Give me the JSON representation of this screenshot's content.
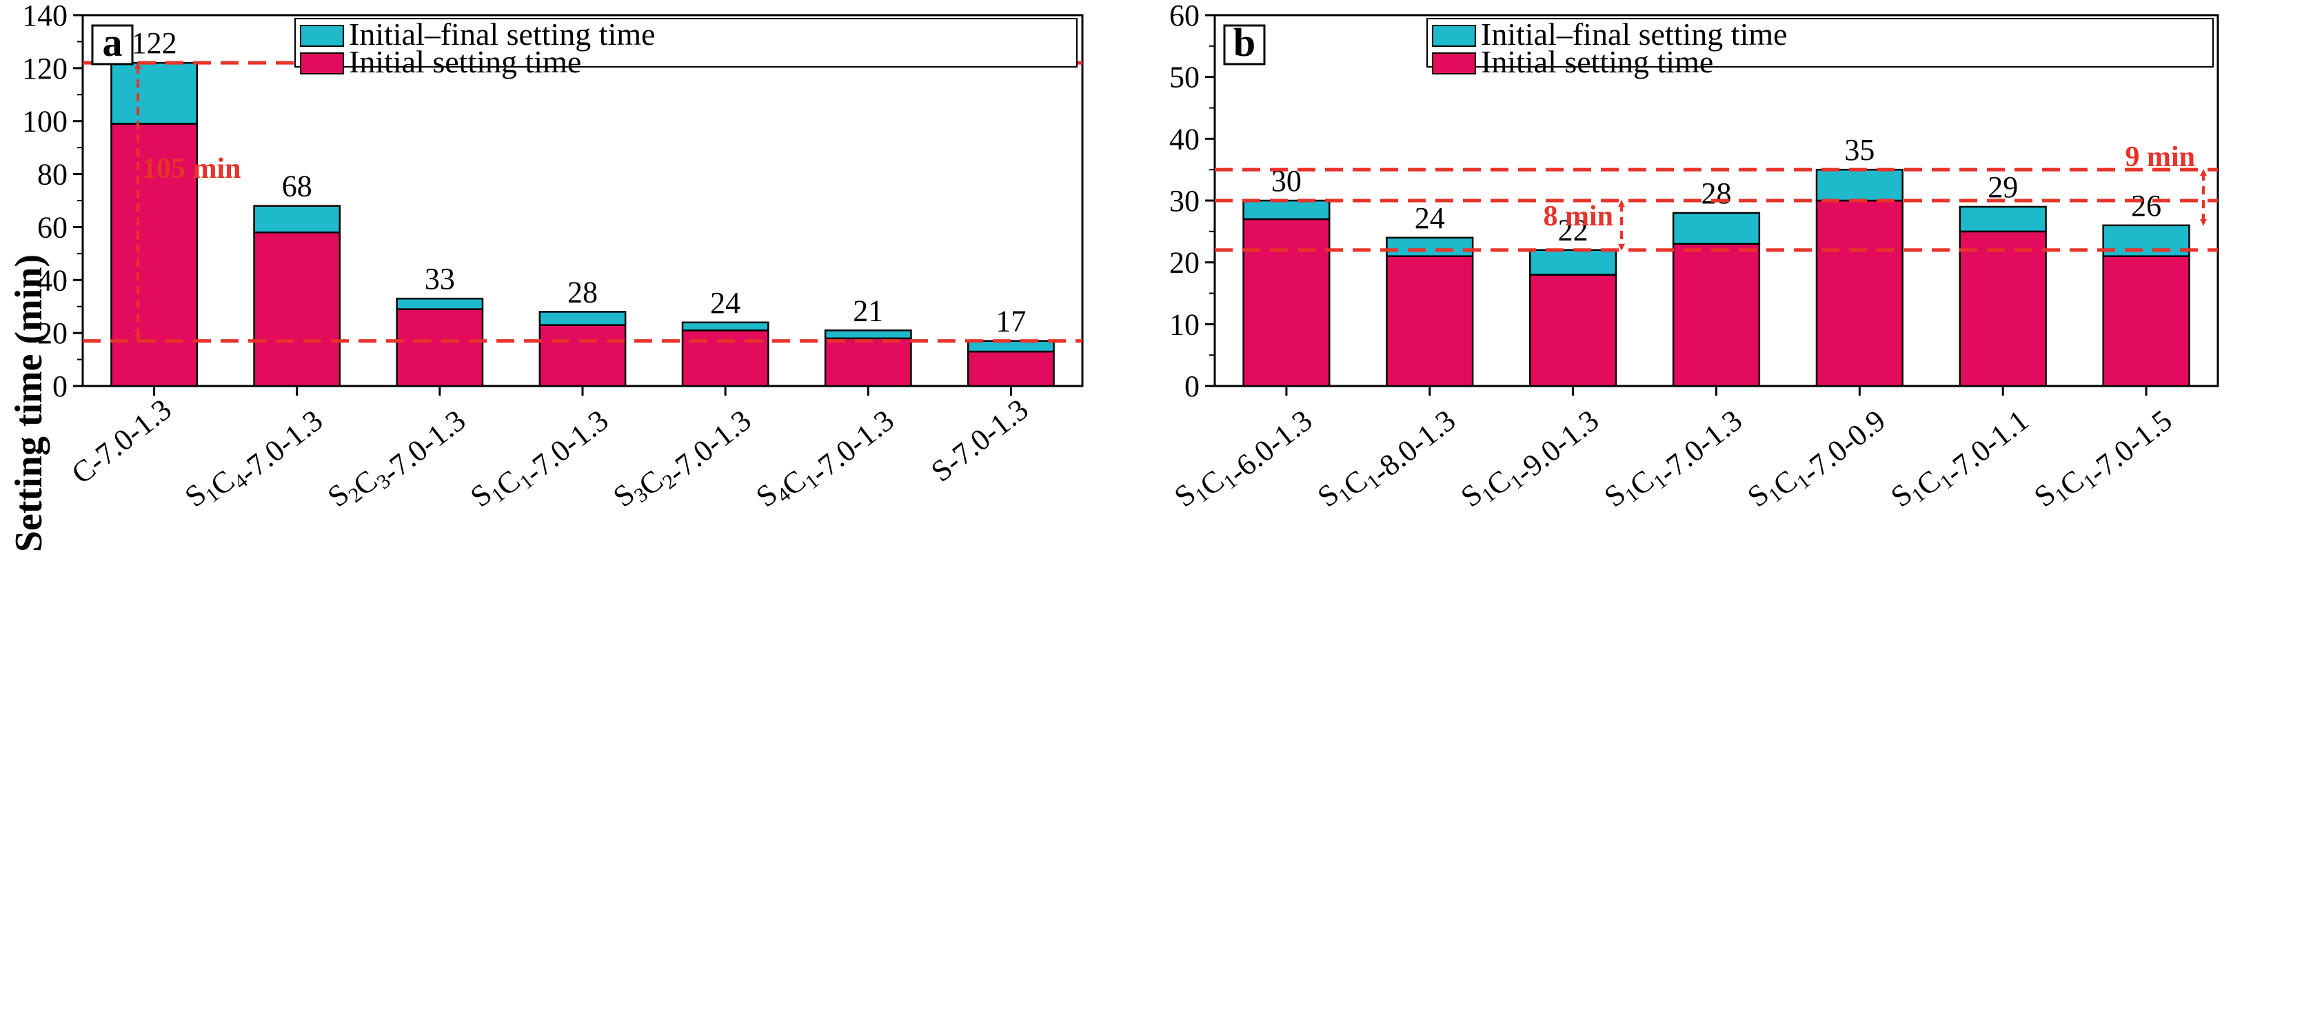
{
  "colors": {
    "initial": "#E30B5C",
    "final_segment": "#1FB9CC",
    "reference_line": "#E8332A",
    "annotation_text": "#E8332A",
    "axis": "#000000"
  },
  "chart_data": [
    {
      "panel": "a",
      "type": "bar",
      "stacked": true,
      "ylabel": "Setting time (min)",
      "xlabel": "",
      "ylim": [
        0,
        140
      ],
      "yticks": [
        "0",
        "20",
        "40",
        "60",
        "80",
        "100",
        "120",
        "140"
      ],
      "categories": [
        {
          "label": "C-7.0-1.3",
          "parts": [
            {
              "t": "C-7.0-1.3"
            }
          ]
        },
        {
          "label": "S1C4-7.0-1.3",
          "parts": [
            {
              "t": "S"
            },
            {
              "t": "1",
              "sub": true
            },
            {
              "t": "C"
            },
            {
              "t": "4",
              "sub": true
            },
            {
              "t": "-7.0-1.3"
            }
          ]
        },
        {
          "label": "S2C3-7.0-1.3",
          "parts": [
            {
              "t": "S"
            },
            {
              "t": "2",
              "sub": true
            },
            {
              "t": "C"
            },
            {
              "t": "3",
              "sub": true
            },
            {
              "t": "-7.0-1.3"
            }
          ]
        },
        {
          "label": "S1C1-7.0-1.3",
          "parts": [
            {
              "t": "S"
            },
            {
              "t": "1",
              "sub": true
            },
            {
              "t": "C"
            },
            {
              "t": "1",
              "sub": true
            },
            {
              "t": "-7.0-1.3"
            }
          ]
        },
        {
          "label": "S3C2-7.0-1.3",
          "parts": [
            {
              "t": "S"
            },
            {
              "t": "3",
              "sub": true
            },
            {
              "t": "C"
            },
            {
              "t": "2",
              "sub": true
            },
            {
              "t": "-7.0-1.3"
            }
          ]
        },
        {
          "label": "S4C1-7.0-1.3",
          "parts": [
            {
              "t": "S"
            },
            {
              "t": "4",
              "sub": true
            },
            {
              "t": "C"
            },
            {
              "t": "1",
              "sub": true
            },
            {
              "t": "-7.0-1.3"
            }
          ]
        },
        {
          "label": "S-7.0-1.3",
          "parts": [
            {
              "t": "S-7.0-1.3"
            }
          ]
        }
      ],
      "series": [
        {
          "name": "Initial setting time",
          "values": [
            99,
            58,
            29,
            23,
            21,
            18,
            13
          ]
        },
        {
          "name": "Initial–final setting time",
          "values": [
            23,
            10,
            4,
            5,
            3,
            3,
            4
          ]
        }
      ],
      "totals": [
        122,
        68,
        33,
        28,
        24,
        21,
        17
      ],
      "total_labels": [
        "122",
        "68",
        "33",
        "28",
        "24",
        "21",
        "17"
      ],
      "reference_lines": [
        122,
        17
      ],
      "annotations": [
        {
          "text": "105 min",
          "from": 122,
          "to": 17
        }
      ],
      "legend": [
        "Initial–final setting time",
        "Initial setting time"
      ],
      "legend_position": "top-right"
    },
    {
      "panel": "b",
      "type": "bar",
      "stacked": true,
      "ylabel": "",
      "xlabel": "",
      "ylim": [
        0,
        60
      ],
      "yticks": [
        "0",
        "10",
        "20",
        "30",
        "40",
        "50",
        "60"
      ],
      "categories": [
        {
          "label": "S1C1-6.0-1.3",
          "parts": [
            {
              "t": "S"
            },
            {
              "t": "1",
              "sub": true
            },
            {
              "t": "C"
            },
            {
              "t": "1",
              "sub": true
            },
            {
              "t": "-6.0-1.3"
            }
          ]
        },
        {
          "label": "S1C1-8.0-1.3",
          "parts": [
            {
              "t": "S"
            },
            {
              "t": "1",
              "sub": true
            },
            {
              "t": "C"
            },
            {
              "t": "1",
              "sub": true
            },
            {
              "t": "-8.0-1.3"
            }
          ]
        },
        {
          "label": "S1C1-9.0-1.3",
          "parts": [
            {
              "t": "S"
            },
            {
              "t": "1",
              "sub": true
            },
            {
              "t": "C"
            },
            {
              "t": "1",
              "sub": true
            },
            {
              "t": "-9.0-1.3"
            }
          ]
        },
        {
          "label": "S1C1-7.0-1.3",
          "parts": [
            {
              "t": "S"
            },
            {
              "t": "1",
              "sub": true
            },
            {
              "t": "C"
            },
            {
              "t": "1",
              "sub": true
            },
            {
              "t": "-7.0-1.3"
            }
          ]
        },
        {
          "label": "S1C1-7.0-0.9",
          "parts": [
            {
              "t": "S"
            },
            {
              "t": "1",
              "sub": true
            },
            {
              "t": "C"
            },
            {
              "t": "1",
              "sub": true
            },
            {
              "t": "-7.0-0.9"
            }
          ]
        },
        {
          "label": "S1C1-7.0-1.1",
          "parts": [
            {
              "t": "S"
            },
            {
              "t": "1",
              "sub": true
            },
            {
              "t": "C"
            },
            {
              "t": "1",
              "sub": true
            },
            {
              "t": "-7.0-1.1"
            }
          ]
        },
        {
          "label": "S1C1-7.0-1.5",
          "parts": [
            {
              "t": "S"
            },
            {
              "t": "1",
              "sub": true
            },
            {
              "t": "C"
            },
            {
              "t": "1",
              "sub": true
            },
            {
              "t": "-7.0-1.5"
            }
          ]
        }
      ],
      "series": [
        {
          "name": "Initial setting time",
          "values": [
            27,
            21,
            18,
            23,
            30,
            25,
            21
          ]
        },
        {
          "name": "Initial–final setting time",
          "values": [
            3,
            3,
            4,
            5,
            5,
            4,
            5
          ]
        }
      ],
      "totals": [
        30,
        24,
        22,
        28,
        35,
        29,
        26
      ],
      "total_labels": [
        "30",
        "24",
        "22",
        "28",
        "35",
        "29",
        "26"
      ],
      "reference_lines": [
        35,
        30,
        22
      ],
      "annotations": [
        {
          "text": "8 min",
          "from": 30,
          "to": 22
        },
        {
          "text": "9 min",
          "from": 35,
          "to": 26
        }
      ],
      "legend": [
        "Initial–final setting time",
        "Initial setting time"
      ],
      "legend_position": "top-right"
    }
  ]
}
